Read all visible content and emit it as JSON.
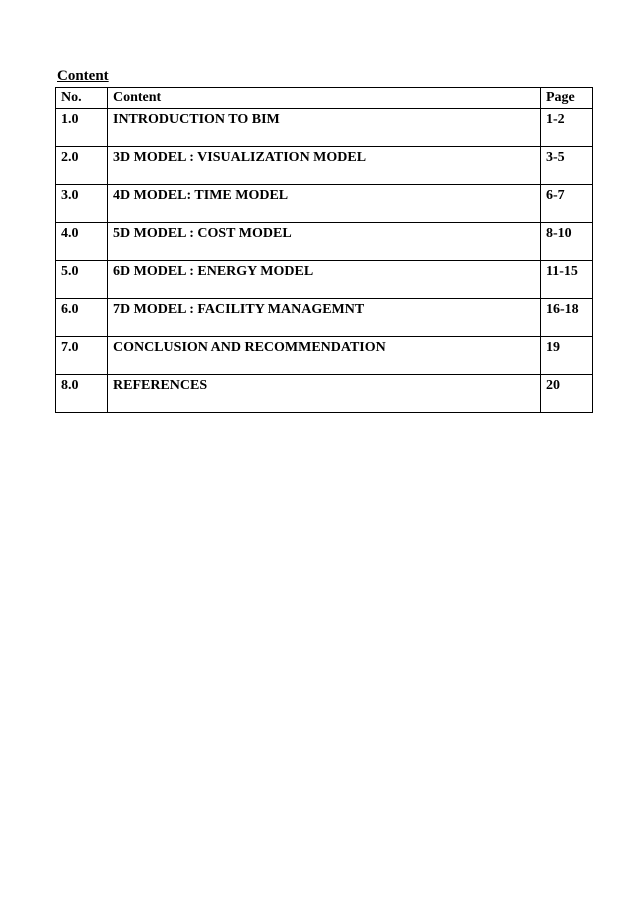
{
  "title": "Content",
  "table": {
    "columns": [
      "No.",
      "Content",
      "Page"
    ],
    "rows": [
      [
        "1.0",
        "INTRODUCTION TO BIM",
        "1-2"
      ],
      [
        "2.0",
        "3D MODEL : VISUALIZATION MODEL",
        "3-5"
      ],
      [
        "3.0",
        "4D MODEL: TIME MODEL",
        "6-7"
      ],
      [
        "4.0",
        "5D MODEL : COST MODEL",
        "8-10"
      ],
      [
        "5.0",
        "6D MODEL : ENERGY MODEL",
        "11-15"
      ],
      [
        "6.0",
        "7D MODEL : FACILITY MANAGEMNT",
        "16-18"
      ],
      [
        "7.0",
        "CONCLUSION AND RECOMMENDATION",
        "19"
      ],
      [
        "8.0",
        "REFERENCES",
        "20"
      ]
    ],
    "border_color": "#000000",
    "background_color": "#ffffff",
    "text_color": "#000000",
    "font_weight": "bold",
    "font_size_pt": 11
  }
}
